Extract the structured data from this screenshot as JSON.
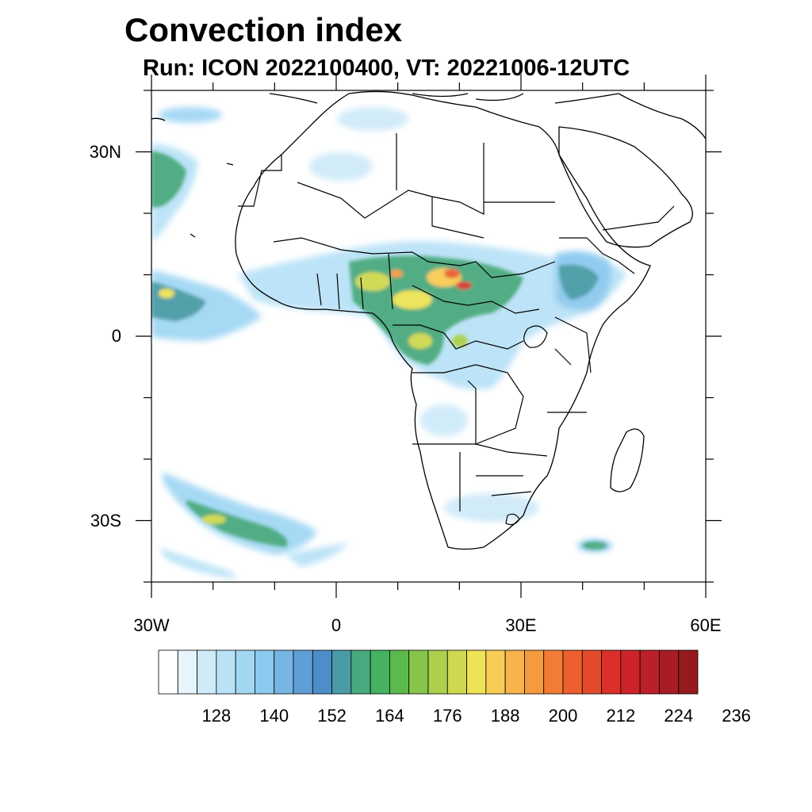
{
  "title": "Convection index",
  "subtitle": "Run: ICON 2022100400,  VT: 20221006-12UTC",
  "map": {
    "lon_range": [
      -30,
      60
    ],
    "lat_range": [
      -40,
      40
    ],
    "lat_ticks": [
      {
        "value": 30,
        "label": "30N"
      },
      {
        "value": 0,
        "label": "0"
      },
      {
        "value": -30,
        "label": "30S"
      }
    ],
    "lon_ticks": [
      {
        "value": -30,
        "label": "30W"
      },
      {
        "value": 0,
        "label": "0"
      },
      {
        "value": 30,
        "label": "30E"
      },
      {
        "value": 60,
        "label": "60E"
      }
    ]
  },
  "colorbar": {
    "colors": [
      "#ffffff",
      "#e6f4fc",
      "#cfeaf9",
      "#b9e2f7",
      "#a2d7f4",
      "#8cc9ee",
      "#76b5e4",
      "#5f9fd6",
      "#4c8fc8",
      "#4a9ba6",
      "#48a97e",
      "#44b25f",
      "#5cba4c",
      "#87c44a",
      "#aad04c",
      "#cfd94f",
      "#ede354",
      "#f9cc55",
      "#f7b44c",
      "#f69a40",
      "#f27c36",
      "#ec5f2e",
      "#e34a2a",
      "#da3029",
      "#cc2429",
      "#bb1f2a",
      "#a81c24",
      "#951a1e"
    ],
    "labels": [
      "128",
      "140",
      "152",
      "164",
      "176",
      "188",
      "200",
      "212",
      "224",
      "236"
    ]
  }
}
